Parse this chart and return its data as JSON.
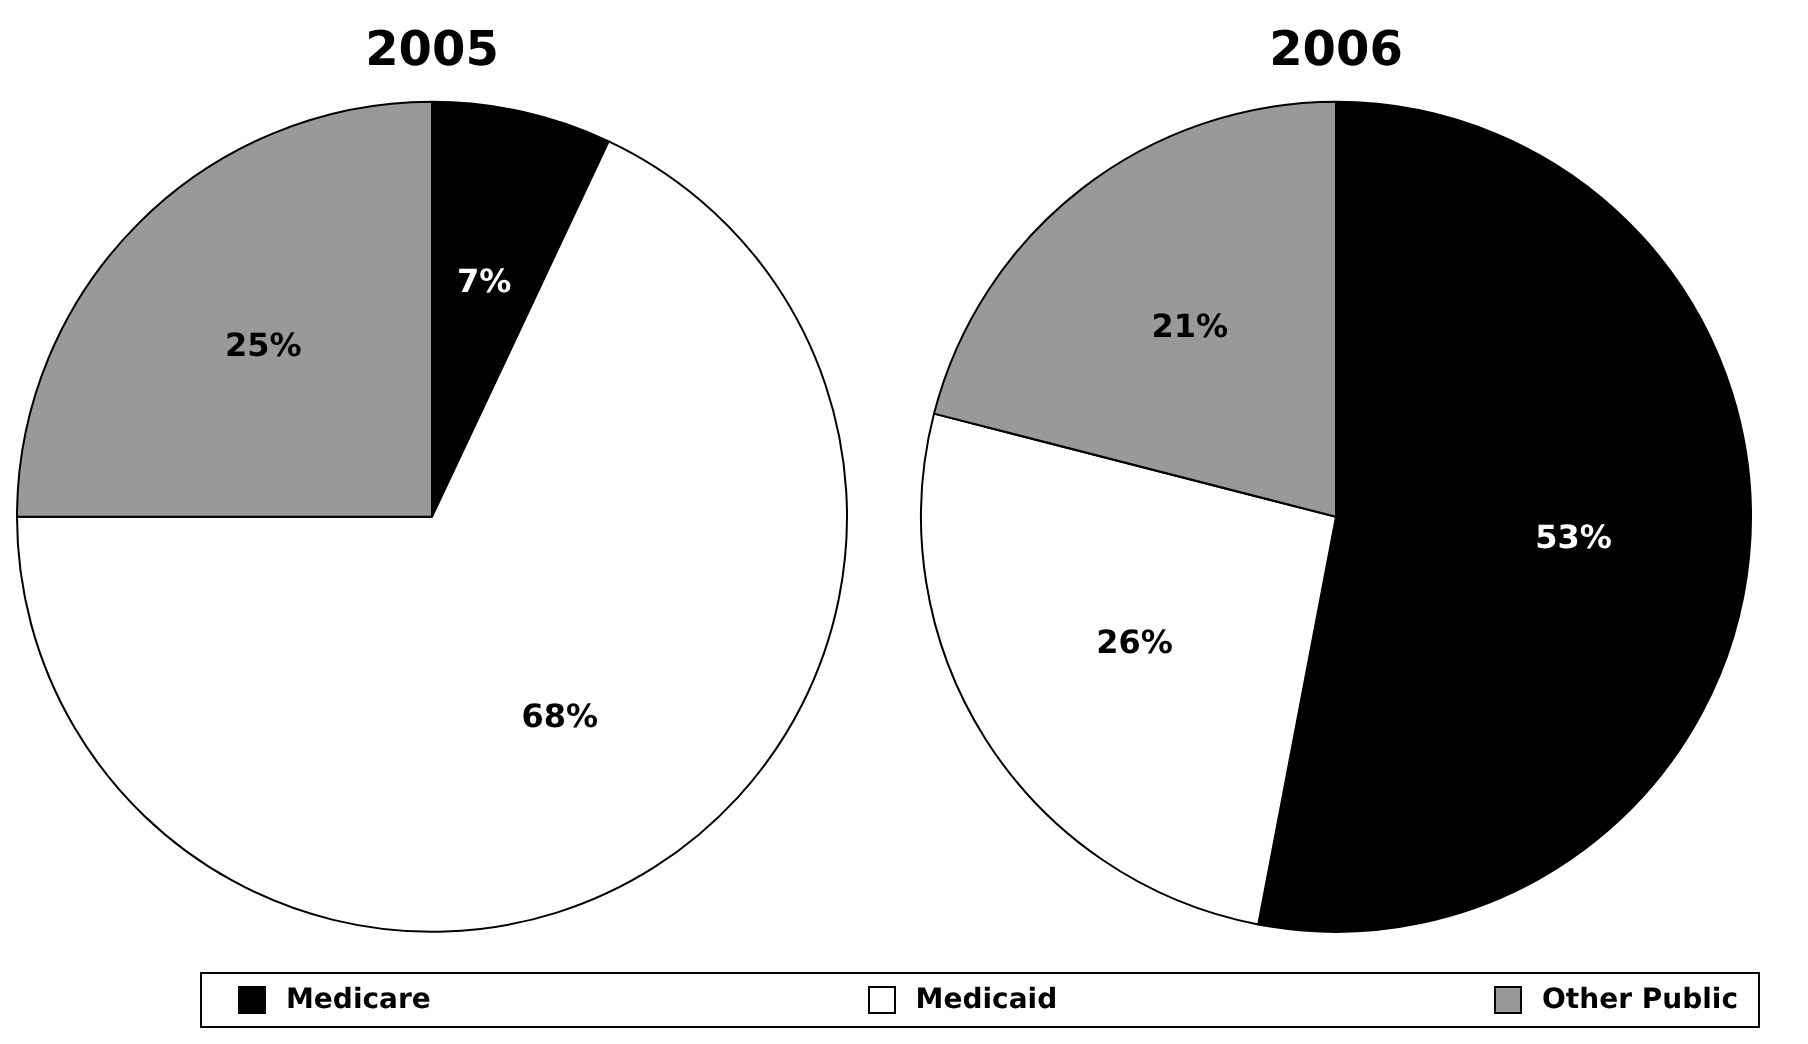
{
  "chart_data": [
    {
      "type": "pie",
      "title": "2005",
      "categories": [
        "Medicare",
        "Medicaid",
        "Other Public"
      ],
      "values": [
        7,
        68,
        25
      ],
      "colors": [
        "#000000",
        "#ffffff",
        "#999999"
      ],
      "value_labels": [
        "7%",
        "68%",
        "25%"
      ],
      "legend": "bottom"
    },
    {
      "type": "pie",
      "title": "2006",
      "categories": [
        null,
        null,
        null
      ],
      "values": [
        53,
        26,
        21
      ],
      "colors": [
        "#000000",
        "#ffffff",
        "#999999"
      ],
      "value_labels": [
        "53%",
        "26%",
        "21%"
      ]
    }
  ]
}
